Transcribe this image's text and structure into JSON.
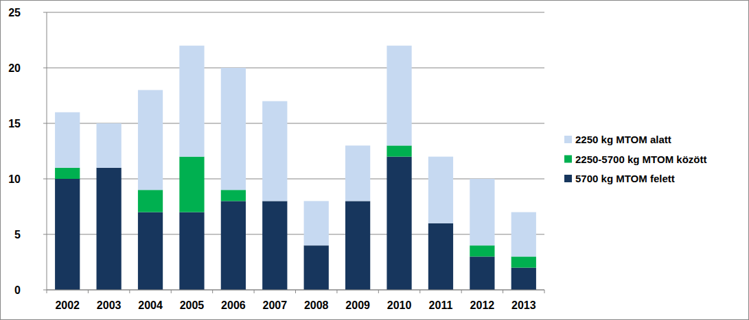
{
  "chart_data": {
    "type": "bar",
    "stacked": true,
    "grid": true,
    "legend": "right",
    "categories": [
      "2002",
      "2003",
      "2004",
      "2005",
      "2006",
      "2007",
      "2008",
      "2009",
      "2010",
      "2011",
      "2012",
      "2013"
    ],
    "series": [
      {
        "name": "5700 kg MTOM felett",
        "color": "#17365d",
        "values": [
          10,
          11,
          7,
          7,
          8,
          8,
          4,
          8,
          12,
          6,
          3,
          2
        ]
      },
      {
        "name": "2250-5700 kg MTOM között",
        "color": "#00b050",
        "values": [
          1,
          0,
          2,
          5,
          1,
          0,
          0,
          0,
          1,
          0,
          1,
          1
        ]
      },
      {
        "name": "2250 kg MTOM alatt",
        "color": "#c6d9f1",
        "values": [
          5,
          4,
          9,
          10,
          11,
          9,
          4,
          5,
          9,
          6,
          6,
          4
        ]
      }
    ],
    "ylim": [
      0,
      25
    ],
    "yticks": [
      0,
      5,
      10,
      15,
      20,
      25
    ]
  }
}
